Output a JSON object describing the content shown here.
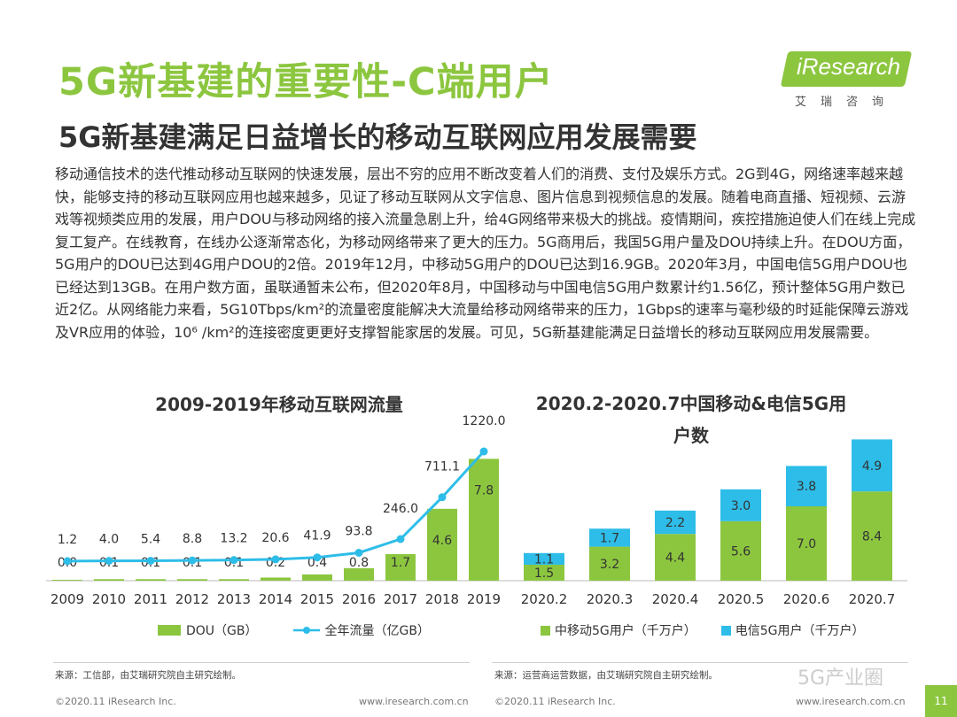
{
  "header": {
    "title": "5G新基建的重要性-C端用户",
    "subtitle": "5G新基建满足日益增长的移动互联网应用发展需要",
    "logo_text": "iResearch",
    "logo_sub": "艾瑞咨询"
  },
  "body_text": "移动通信技术的迭代推动移动互联网的快速发展，层出不穷的应用不断改变着人们的消费、支付及娱乐方式。2G到4G，网络速率越来越快，能够支持的移动互联网应用也越来越多，见证了移动互联网从文字信息、图片信息到视频信息的发展。随着电商直播、短视频、云游戏等视频类应用的发展，用户DOU与移动网络的接入流量急剧上升，给4G网络带来极大的挑战。疫情期间，疾控措施迫使人们在线上完成复工复产。在线教育，在线办公逐渐常态化，为移动网络带来了更大的压力。5G商用后，我国5G用户量及DOU持续上升。在DOU方面，5G用户的DOU已达到4G用户DOU的2倍。2019年12月，中移动5G用户的DOU已达到16.9GB。2020年3月，中国电信5G用户DOU也已经达到13GB。在用户数方面，虽联通暂未公布，但2020年8月，中国移动与中国电信5G用户数累计约1.56亿，预计整体5G用户数已近2亿。从网络能力来看，5G10Tbps/km²的流量密度能解决大流量给移动网络带来的压力，1Gbps的速率与毫秒级的时延能保障云游戏及VR应用的体验，10⁶ /km²的连接密度更更好支撑智能家居的发展。可见，5G新基建能满足日益增长的移动互联网应用发展需要。",
  "chart_data": [
    {
      "type": "bar",
      "title": "2009-2019年移动互联网流量",
      "categories": [
        "2009",
        "2010",
        "2011",
        "2012",
        "2013",
        "2014",
        "2015",
        "2016",
        "2017",
        "2018",
        "2019"
      ],
      "series": [
        {
          "name": "DOU（GB）",
          "kind": "bar",
          "color": "#8cc63f",
          "values": [
            0.0,
            0.1,
            0.1,
            0.1,
            0.1,
            0.2,
            0.4,
            0.8,
            1.7,
            4.6,
            7.8
          ],
          "labels": [
            "0.0",
            "0.1",
            "0.1",
            "0.1",
            "0.1",
            "0.2",
            "0.4",
            "0.8",
            "1.7",
            "4.6",
            "7.8"
          ]
        },
        {
          "name": "全年流量（亿GB）",
          "kind": "line",
          "color": "#2ebde8",
          "values": [
            1.2,
            4.0,
            5.4,
            8.8,
            13.2,
            20.6,
            41.9,
            93.8,
            246.0,
            711.1,
            1220.0
          ],
          "labels": [
            "1.2",
            "4.0",
            "5.4",
            "8.8",
            "13.2",
            "20.6",
            "41.9",
            "93.8",
            "246.0",
            "711.1",
            "1220.0"
          ]
        }
      ],
      "source": "来源：工信部，由艾瑞研究院自主研究绘制。"
    },
    {
      "type": "bar",
      "stacked": true,
      "title": "2020.2-2020.7中国移动&电信5G用户数",
      "categories": [
        "2020.2",
        "2020.3",
        "2020.4",
        "2020.5",
        "2020.6",
        "2020.7"
      ],
      "series": [
        {
          "name": "中移动5G用户（千万户）",
          "color": "#8cc63f",
          "values": [
            1.5,
            3.2,
            4.4,
            5.6,
            7.0,
            8.4
          ],
          "labels": [
            "1.5",
            "3.2",
            "4.4",
            "5.6",
            "7.0",
            "8.4"
          ]
        },
        {
          "name": "电信5G用户（千万户）",
          "color": "#2ebde8",
          "values": [
            1.1,
            1.7,
            2.2,
            3.0,
            3.8,
            4.9
          ],
          "labels": [
            "1.1",
            "1.7",
            "2.2",
            "3.0",
            "3.8",
            "4.9"
          ]
        }
      ],
      "source": "来源：运营商运营数据，由艾瑞研究院自主研究绘制。"
    }
  ],
  "footer": {
    "left": "©2020.11 iResearch Inc.",
    "left_url": "www.iresearch.com.cn",
    "right": "©2020.11 iResearch Inc.",
    "right_url": "www.iresearch.com.cn",
    "watermark": "5G产业圈",
    "page": "11"
  }
}
